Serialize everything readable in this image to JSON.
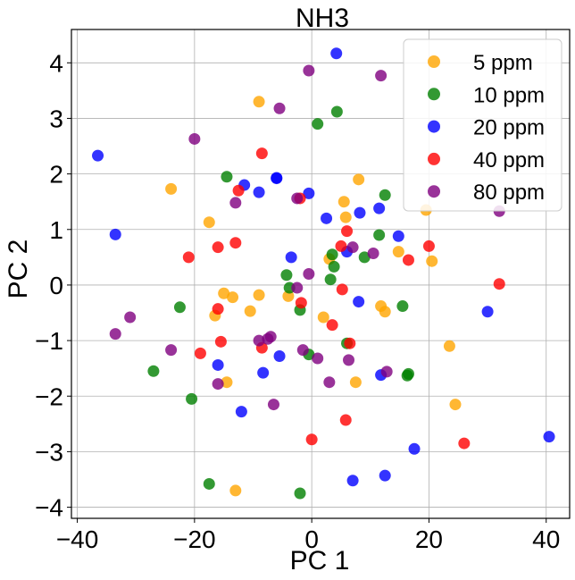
{
  "chart_data": {
    "type": "scatter",
    "title": "NH3",
    "xlabel": "PC 1",
    "ylabel": "PC 2",
    "xlim": [
      -41,
      44
    ],
    "ylim": [
      -4.2,
      4.6
    ],
    "xticks": [
      -40,
      -20,
      0,
      20,
      40
    ],
    "xtick_labels": [
      "−40",
      "−20",
      "0",
      "20",
      "40"
    ],
    "yticks": [
      -4,
      -3,
      -2,
      -1,
      0,
      1,
      2,
      3,
      4
    ],
    "ytick_labels": [
      "−4",
      "−3",
      "−2",
      "−1",
      "0",
      "1",
      "2",
      "3",
      "4"
    ],
    "grid": true,
    "legend_position": "upper right",
    "series": [
      {
        "name": "5 ppm",
        "color": "#FFA500",
        "points": [
          [
            -9,
            3.3
          ],
          [
            -24,
            1.73
          ],
          [
            -17.5,
            1.13
          ],
          [
            -15,
            -0.15
          ],
          [
            -13.5,
            -0.22
          ],
          [
            -16.5,
            -0.55
          ],
          [
            -9,
            -0.18
          ],
          [
            -10.5,
            -0.47
          ],
          [
            -14.5,
            -1.75
          ],
          [
            -13,
            -3.7
          ],
          [
            -4,
            -0.2
          ],
          [
            2,
            -0.58
          ],
          [
            3,
            0.47
          ],
          [
            5.5,
            1.5
          ],
          [
            5.8,
            1.22
          ],
          [
            8,
            1.9
          ],
          [
            11.8,
            -0.38
          ],
          [
            12.5,
            -0.48
          ],
          [
            14.8,
            0.6
          ],
          [
            19.5,
            1.35
          ],
          [
            20.5,
            0.43
          ],
          [
            23.5,
            -1.1
          ],
          [
            24.5,
            -2.15
          ],
          [
            7.5,
            -1.75
          ]
        ]
      },
      {
        "name": "10 ppm",
        "color": "#008000",
        "points": [
          [
            1,
            2.9
          ],
          [
            4.3,
            3.12
          ],
          [
            -14.5,
            1.95
          ],
          [
            3.5,
            0.55
          ],
          [
            3.8,
            0.33
          ],
          [
            -4.3,
            0.18
          ],
          [
            -3.8,
            -0.05
          ],
          [
            -2,
            -0.45
          ],
          [
            -22.5,
            -0.4
          ],
          [
            -27,
            -1.55
          ],
          [
            -20.5,
            -2.05
          ],
          [
            -17.5,
            -3.58
          ],
          [
            -2,
            -3.75
          ],
          [
            -0.5,
            -1.25
          ],
          [
            6,
            -1.05
          ],
          [
            9,
            0.5
          ],
          [
            11.5,
            0.9
          ],
          [
            12.5,
            1.62
          ],
          [
            15.5,
            -0.38
          ],
          [
            16.5,
            -1.6
          ],
          [
            16.3,
            -1.63
          ],
          [
            3.2,
            0.1
          ]
        ]
      },
      {
        "name": "20 ppm",
        "color": "#0000FF",
        "points": [
          [
            -36.5,
            2.33
          ],
          [
            -33.5,
            0.91
          ],
          [
            4.2,
            4.17
          ],
          [
            -11.5,
            1.8
          ],
          [
            -9,
            1.67
          ],
          [
            -6,
            1.92
          ],
          [
            -0.5,
            1.65
          ],
          [
            2.5,
            1.2
          ],
          [
            8.2,
            1.3
          ],
          [
            11.5,
            1.38
          ],
          [
            14.8,
            0.88
          ],
          [
            -3.5,
            0.5
          ],
          [
            6,
            0.6
          ],
          [
            8,
            -0.3
          ],
          [
            -16,
            -1.44
          ],
          [
            -8.3,
            -1.58
          ],
          [
            -5.5,
            -1.28
          ],
          [
            -12,
            -2.28
          ],
          [
            7,
            -3.52
          ],
          [
            12.5,
            -3.43
          ],
          [
            11.8,
            -1.62
          ],
          [
            17.5,
            -2.95
          ],
          [
            30,
            -0.48
          ],
          [
            40.5,
            -2.73
          ],
          [
            -6,
            1.93
          ]
        ]
      },
      {
        "name": "40 ppm",
        "color": "#FF0000",
        "points": [
          [
            -8.5,
            2.37
          ],
          [
            -12.5,
            1.7
          ],
          [
            -2,
            1.56
          ],
          [
            -21,
            0.5
          ],
          [
            -16,
            0.68
          ],
          [
            -13,
            0.76
          ],
          [
            6,
            0.97
          ],
          [
            5,
            0.7
          ],
          [
            16.5,
            0.45
          ],
          [
            20,
            0.7
          ],
          [
            32,
            0.02
          ],
          [
            -1.8,
            -0.32
          ],
          [
            3.5,
            -0.72
          ],
          [
            5.2,
            -0.08
          ],
          [
            -16,
            -0.43
          ],
          [
            -15.5,
            -1.02
          ],
          [
            -19,
            -1.23
          ],
          [
            -8.5,
            -1.13
          ],
          [
            0,
            -2.78
          ],
          [
            5.8,
            -2.43
          ],
          [
            6.5,
            -1.05
          ],
          [
            26,
            -2.85
          ]
        ]
      },
      {
        "name": "80 ppm",
        "color": "#800080",
        "points": [
          [
            -0.5,
            3.86
          ],
          [
            11.8,
            3.77
          ],
          [
            -5.5,
            3.18
          ],
          [
            -20,
            2.63
          ],
          [
            -13,
            1.48
          ],
          [
            -2.5,
            1.56
          ],
          [
            7,
            0.68
          ],
          [
            10.5,
            0.57
          ],
          [
            32,
            1.33
          ],
          [
            -2.5,
            -0.05
          ],
          [
            -0.5,
            0.2
          ],
          [
            -31,
            -0.58
          ],
          [
            -33.5,
            -0.88
          ],
          [
            -24,
            -1.17
          ],
          [
            -9,
            -1.0
          ],
          [
            -7,
            -0.93
          ],
          [
            -1.5,
            -1.17
          ],
          [
            1,
            -1.32
          ],
          [
            6.3,
            -1.35
          ],
          [
            3,
            -1.75
          ],
          [
            12.8,
            -1.56
          ],
          [
            -16,
            -1.78
          ],
          [
            -6.5,
            -2.15
          ],
          [
            -7.5,
            -0.97
          ]
        ]
      }
    ]
  }
}
